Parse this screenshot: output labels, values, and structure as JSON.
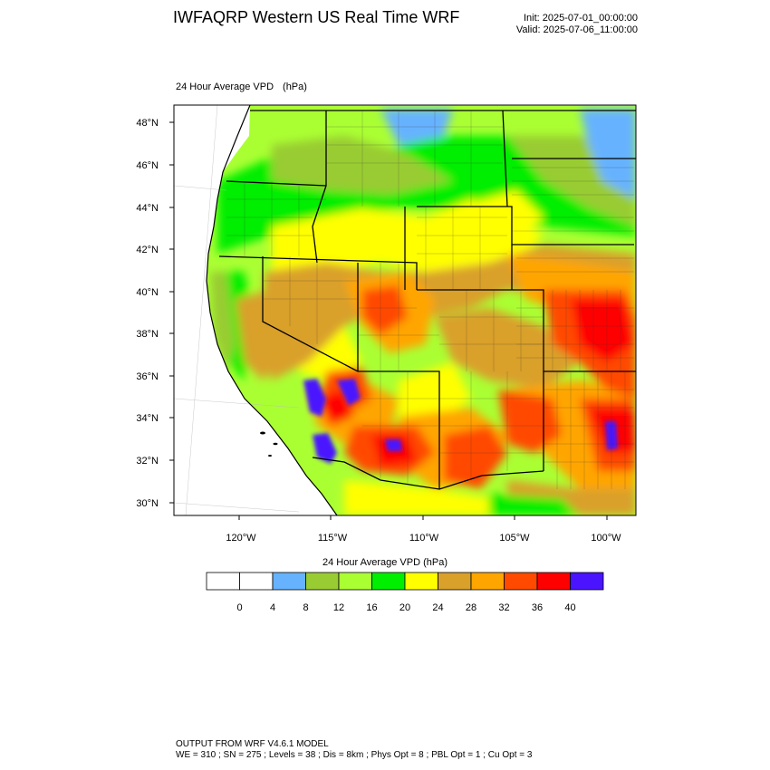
{
  "header": {
    "title": "IWFAQRP Western US Real Time WRF",
    "init": "Init: 2025-07-01_00:00:00",
    "valid": "Valid: 2025-07-06_11:00:00"
  },
  "plot": {
    "title": "24 Hour Average VPD",
    "unit": "(hPa)",
    "lat_labels": [
      "48°N",
      "46°N",
      "44°N",
      "42°N",
      "40°N",
      "38°N",
      "36°N",
      "34°N",
      "32°N",
      "30°N"
    ],
    "lon_labels": [
      "120°W",
      "115°W",
      "110°W",
      "105°W",
      "100°W"
    ],
    "colors": {
      "0": "#ffffff",
      "4": "#66b2ff",
      "8": "#99cc33",
      "12": "#aaff33",
      "16": "#00ee00",
      "20": "#ffff00",
      "24": "#d9a02a",
      "28": "#ffa500",
      "32": "#ff4a00",
      "36": "#ff0000",
      "40": "#4a14ff",
      "water": "#ffffff"
    }
  },
  "colorbar": {
    "title": "24 Hour Average VPD  (hPa)",
    "labels": [
      "0",
      "4",
      "8",
      "12",
      "16",
      "20",
      "24",
      "28",
      "32",
      "36",
      "40"
    ],
    "colors": [
      "#ffffff",
      "#ffffff",
      "#66b2ff",
      "#99cc33",
      "#aaff33",
      "#00ee00",
      "#ffff00",
      "#d9a02a",
      "#ffa500",
      "#ff4a00",
      "#ff0000",
      "#4a14ff"
    ]
  },
  "footer": {
    "line1": "OUTPUT FROM WRF V4.6.1 MODEL",
    "line2": "WE = 310 ; SN = 275 ; Levels = 38 ; Dis = 8km ; Phys Opt = 8 ; PBL Opt = 1 ; Cu Opt = 3"
  }
}
